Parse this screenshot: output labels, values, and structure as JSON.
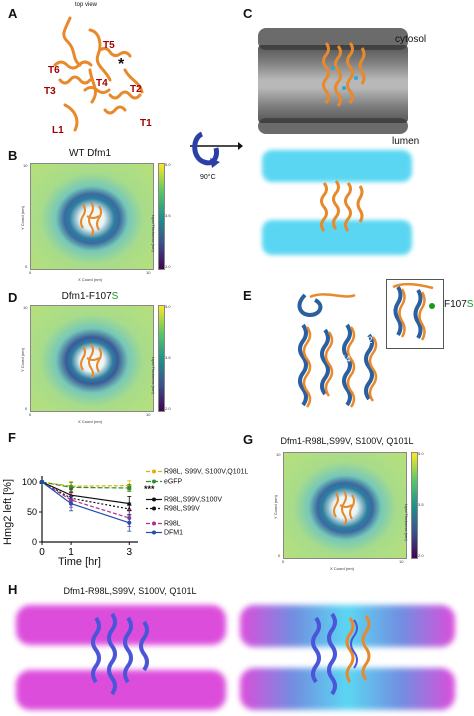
{
  "panels": {
    "A": {
      "letter": "A",
      "title": "top view",
      "helices": [
        "T5",
        "T6",
        "T4",
        "T3",
        "T2",
        "L1",
        "T1"
      ],
      "star": "*"
    },
    "B": {
      "letter": "B",
      "title": "WT Dfm1",
      "xlabel": "X Coord (nm)",
      "ylabel": "Y Coord (nm)",
      "cblabel": "Lipid Thickness (nm)",
      "xticks": [
        "0",
        "2",
        "4",
        "6",
        "8",
        "10"
      ],
      "yticks": [
        "10",
        "8",
        "6",
        "4",
        "2",
        "0"
      ],
      "cbticks": [
        "5.0",
        "4.5",
        "4.0",
        "3.5",
        "3.0",
        "2.5",
        "2.0"
      ]
    },
    "C": {
      "letter": "C",
      "cytosol": "cytosol",
      "lumen": "lumen",
      "rotation": "90°C"
    },
    "D": {
      "letter": "D",
      "title_prefix": "Dfm1-F107",
      "title_suffix": "S",
      "xlabel": "X Coord (nm)",
      "ylabel": "Y Coord (nm)",
      "cblabel": "Lipid Thickness (nm)",
      "xticks": [
        "0",
        "2",
        "4",
        "6",
        "8",
        "10"
      ],
      "yticks": [
        "10",
        "8",
        "6",
        "4",
        "2",
        "0"
      ],
      "cbticks": [
        "5.0",
        "4.5",
        "4.0",
        "3.5",
        "3.0",
        "2.5",
        "2.0"
      ]
    },
    "E": {
      "letter": "E",
      "mutation_prefix": "F107",
      "mutation_suffix": "S",
      "helices": [
        "T2",
        "T4",
        "T3"
      ]
    },
    "F": {
      "letter": "F",
      "ylabel": "Hmg2 left [%]",
      "xlabel": "Time [hr]",
      "significance": "***",
      "legend": [
        "R98L, S99V, S100V,Q101L",
        "eGFP",
        "R98L,S99V,S100V",
        "R98L,S99V",
        "R98L",
        "DFM1"
      ]
    },
    "G": {
      "letter": "G",
      "title": "Dfm1-R98L,S99V, S100V, Q101L",
      "xlabel": "X Coord (nm)",
      "ylabel": "Y Coord (nm)",
      "cblabel": "Lipid Thickness (nm)",
      "xticks": [
        "0",
        "2",
        "4",
        "6",
        "8",
        "10"
      ],
      "yticks": [
        "10",
        "8",
        "6",
        "4",
        "2",
        "0"
      ],
      "cbticks": [
        "5.0",
        "4.5",
        "4.0",
        "3.5",
        "3.0",
        "2.5",
        "2.0"
      ]
    },
    "H": {
      "letter": "H",
      "title": "Dfm1-R98L,S99V, S100V, Q101L"
    }
  },
  "colors": {
    "protein_orange": "#e8892b",
    "protein_blue": "#2a5fa0",
    "helix_label_red": "#a00000",
    "lumen_cyan": "#3fd0f0",
    "membrane_magenta": "#d62fd6",
    "rotation_blue": "#2b3fa8"
  },
  "chart_data": {
    "type": "line",
    "title": "",
    "xlabel": "Time [hr]",
    "ylabel": "Hmg2 left [%]",
    "xlim": [
      0,
      3.3
    ],
    "ylim": [
      0,
      110
    ],
    "xticks": [
      0,
      1,
      3
    ],
    "yticks": [
      0,
      50,
      100
    ],
    "series": [
      {
        "name": "R98L, S99V, S100V,Q101L",
        "x": [
          0,
          1,
          3
        ],
        "y": [
          100,
          93,
          94
        ],
        "err": [
          0,
          8,
          8
        ],
        "color": "#e0b000",
        "dash": "4,2",
        "marker": "diamond"
      },
      {
        "name": "eGFP",
        "x": [
          0,
          1,
          3
        ],
        "y": [
          100,
          91,
          90
        ],
        "err": [
          0,
          8,
          6
        ],
        "color": "#2f8f2f",
        "dash": "5,2",
        "marker": "square"
      },
      {
        "name": "R98L,S99V,S100V",
        "x": [
          0,
          1,
          3
        ],
        "y": [
          100,
          78,
          64
        ],
        "err": [
          0,
          10,
          12
        ],
        "color": "#111111",
        "dash": "",
        "marker": "triangle"
      },
      {
        "name": "R98L,S99V",
        "x": [
          0,
          1,
          3
        ],
        "y": [
          100,
          73,
          55
        ],
        "err": [
          0,
          10,
          10
        ],
        "color": "#111111",
        "dash": "2,2",
        "marker": "triangle"
      },
      {
        "name": "R98L",
        "x": [
          0,
          1,
          3
        ],
        "y": [
          100,
          70,
          40
        ],
        "err": [
          0,
          12,
          14
        ],
        "color": "#b03090",
        "dash": "4,2",
        "marker": "circle"
      },
      {
        "name": "DFM1",
        "x": [
          0,
          1,
          3
        ],
        "y": [
          100,
          64,
          32
        ],
        "err": [
          0,
          12,
          14
        ],
        "color": "#1f4fb0",
        "dash": "",
        "marker": "circle"
      }
    ]
  }
}
